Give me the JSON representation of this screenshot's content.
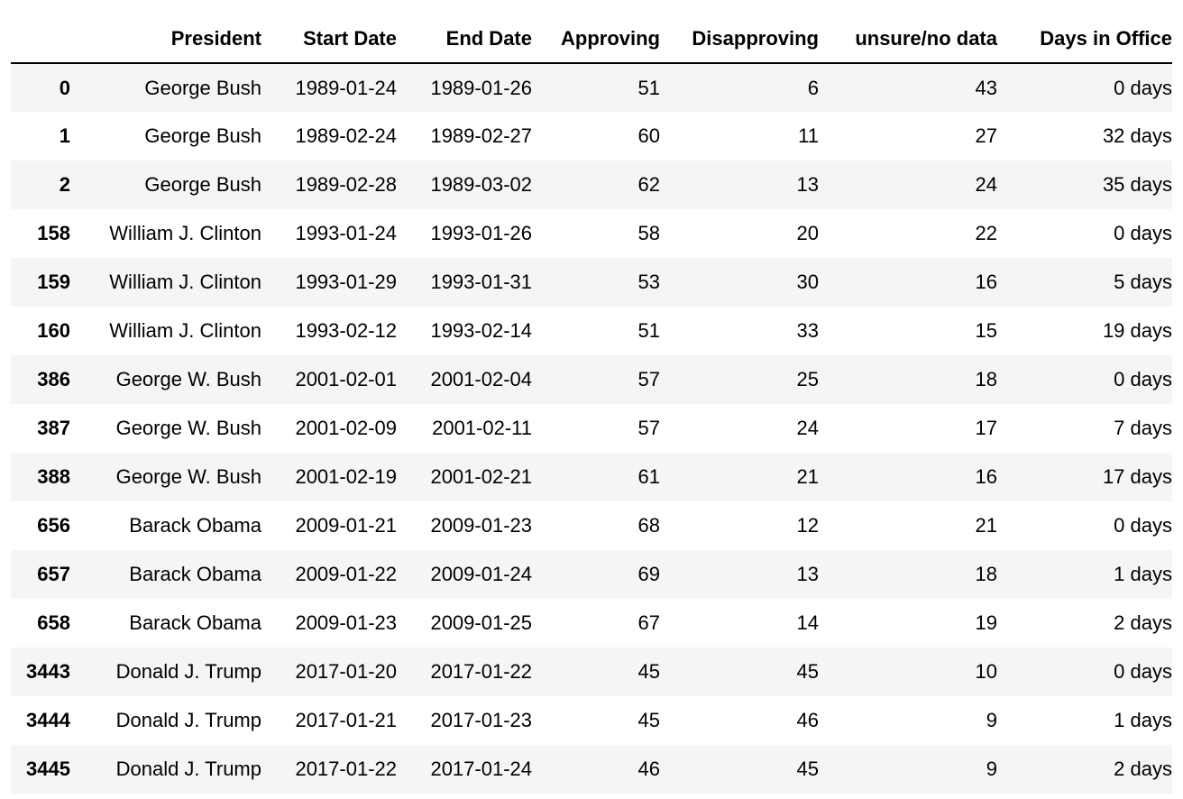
{
  "table": {
    "columns": [
      "",
      "President",
      "Start Date",
      "End Date",
      "Approving",
      "Disapproving",
      "unsure/no data",
      "Days in Office"
    ],
    "rows": [
      {
        "index": "0",
        "cells": [
          "George Bush",
          "1989-01-24",
          "1989-01-26",
          "51",
          "6",
          "43",
          "0 days"
        ]
      },
      {
        "index": "1",
        "cells": [
          "George Bush",
          "1989-02-24",
          "1989-02-27",
          "60",
          "11",
          "27",
          "32 days"
        ]
      },
      {
        "index": "2",
        "cells": [
          "George Bush",
          "1989-02-28",
          "1989-03-02",
          "62",
          "13",
          "24",
          "35 days"
        ]
      },
      {
        "index": "158",
        "cells": [
          "William J. Clinton",
          "1993-01-24",
          "1993-01-26",
          "58",
          "20",
          "22",
          "0 days"
        ]
      },
      {
        "index": "159",
        "cells": [
          "William J. Clinton",
          "1993-01-29",
          "1993-01-31",
          "53",
          "30",
          "16",
          "5 days"
        ]
      },
      {
        "index": "160",
        "cells": [
          "William J. Clinton",
          "1993-02-12",
          "1993-02-14",
          "51",
          "33",
          "15",
          "19 days"
        ]
      },
      {
        "index": "386",
        "cells": [
          "George W. Bush",
          "2001-02-01",
          "2001-02-04",
          "57",
          "25",
          "18",
          "0 days"
        ]
      },
      {
        "index": "387",
        "cells": [
          "George W. Bush",
          "2001-02-09",
          "2001-02-11",
          "57",
          "24",
          "17",
          "7 days"
        ]
      },
      {
        "index": "388",
        "cells": [
          "George W. Bush",
          "2001-02-19",
          "2001-02-21",
          "61",
          "21",
          "16",
          "17 days"
        ]
      },
      {
        "index": "656",
        "cells": [
          "Barack Obama",
          "2009-01-21",
          "2009-01-23",
          "68",
          "12",
          "21",
          "0 days"
        ]
      },
      {
        "index": "657",
        "cells": [
          "Barack Obama",
          "2009-01-22",
          "2009-01-24",
          "69",
          "13",
          "18",
          "1 days"
        ]
      },
      {
        "index": "658",
        "cells": [
          "Barack Obama",
          "2009-01-23",
          "2009-01-25",
          "67",
          "14",
          "19",
          "2 days"
        ]
      },
      {
        "index": "3443",
        "cells": [
          "Donald J. Trump",
          "2017-01-20",
          "2017-01-22",
          "45",
          "45",
          "10",
          "0 days"
        ]
      },
      {
        "index": "3444",
        "cells": [
          "Donald J. Trump",
          "2017-01-21",
          "2017-01-23",
          "45",
          "46",
          "9",
          "1 days"
        ]
      },
      {
        "index": "3445",
        "cells": [
          "Donald J. Trump",
          "2017-01-22",
          "2017-01-24",
          "46",
          "45",
          "9",
          "2 days"
        ]
      }
    ]
  }
}
